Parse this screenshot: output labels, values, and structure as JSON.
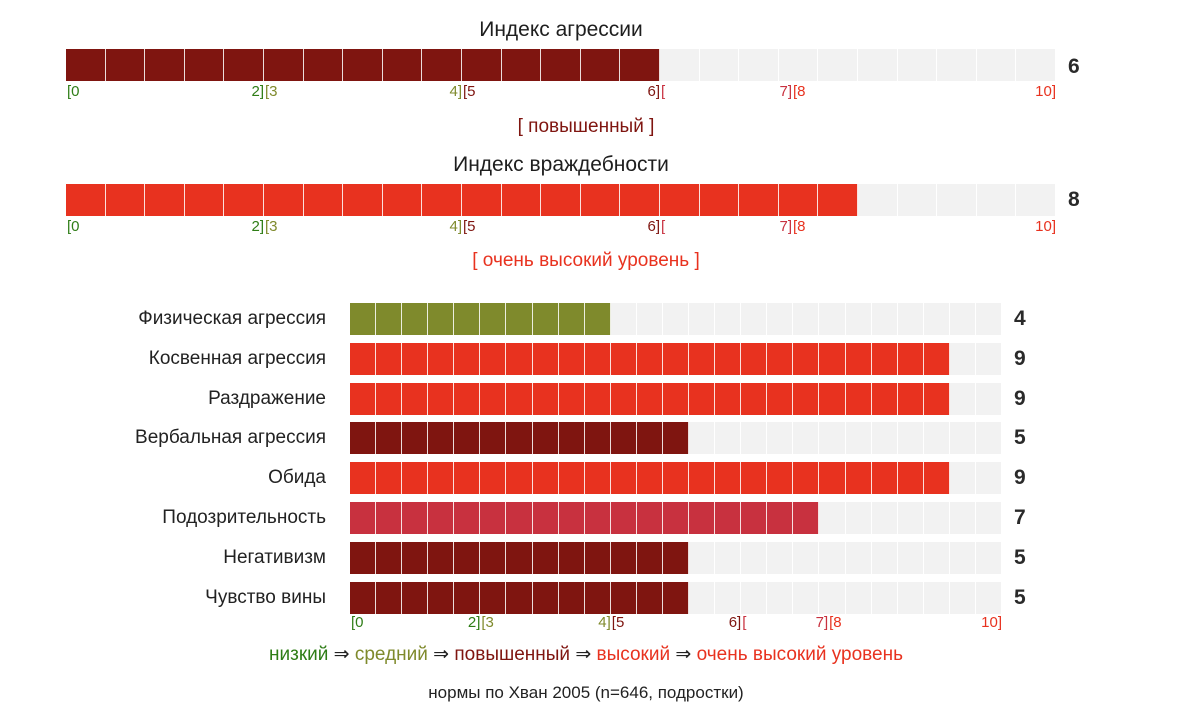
{
  "colors": {
    "low": "#2e7d16",
    "medium": "#7f8a2c",
    "elevated": "#7f1510",
    "high": "#c8313f",
    "very_high": "#e8321f",
    "background": "#f2f2f2"
  },
  "chart_data": [
    {
      "type": "bar",
      "orientation": "horizontal",
      "title": "Индекс агрессии",
      "categories": [
        "Индекс агрессии"
      ],
      "values": [
        6
      ],
      "value_label": "6",
      "xlim": [
        0,
        10
      ],
      "level_text": "[ повышенный ]",
      "level": "elevated"
    },
    {
      "type": "bar",
      "orientation": "horizontal",
      "title": "Индекс враждебности",
      "categories": [
        "Индекс враждебности"
      ],
      "values": [
        8
      ],
      "value_label": "8",
      "xlim": [
        0,
        10
      ],
      "level_text": "[ очень высокий уровень ]",
      "level": "very_high"
    },
    {
      "type": "bar",
      "orientation": "horizontal",
      "xlim": [
        0,
        10
      ],
      "categories": [
        "Физическая агрессия",
        "Косвенная агрессия",
        "Раздражение",
        "Вербальная агрессия",
        "Обида",
        "Подозрительность",
        "Негативизм",
        "Чувство вины"
      ],
      "values": [
        4,
        9,
        9,
        5,
        9,
        7,
        5,
        5
      ],
      "value_labels": [
        "4",
        "9",
        "9",
        "5",
        "9",
        "7",
        "5",
        "5"
      ],
      "levels": [
        "medium",
        "very_high",
        "very_high",
        "elevated",
        "very_high",
        "high",
        "elevated",
        "elevated"
      ]
    }
  ],
  "scale_ticks": [
    {
      "text": "[0",
      "pos": 0,
      "align": "start",
      "level": "low"
    },
    {
      "text": "2]",
      "pos": 3,
      "align": "end",
      "level": "low"
    },
    {
      "text": "[3",
      "pos": 3,
      "align": "start",
      "level": "medium"
    },
    {
      "text": "4]",
      "pos": 6,
      "align": "end",
      "level": "medium"
    },
    {
      "text": "[5",
      "pos": 6,
      "align": "start",
      "level": "elevated"
    },
    {
      "text": "6]",
      "pos": 9,
      "align": "end",
      "level": "elevated"
    },
    {
      "text": "[",
      "pos": 9,
      "align": "start",
      "level": "high"
    },
    {
      "text": "7]",
      "pos": 11,
      "align": "end",
      "level": "high"
    },
    {
      "text": "[8",
      "pos": 11,
      "align": "start",
      "level": "very_high"
    },
    {
      "text": "10]",
      "pos": 15,
      "align": "end",
      "level": "very_high"
    }
  ],
  "legend": [
    {
      "text": "низкий",
      "level": "low"
    },
    {
      "text": " ⇒ ",
      "level": "arrow"
    },
    {
      "text": "средний",
      "level": "medium"
    },
    {
      "text": " ⇒ ",
      "level": "arrow"
    },
    {
      "text": "повышенный",
      "level": "elevated"
    },
    {
      "text": " ⇒ ",
      "level": "arrow"
    },
    {
      "text": "высокий",
      "level": "high_text"
    },
    {
      "text": " ⇒ ",
      "level": "arrow"
    },
    {
      "text": "очень высокий уровень",
      "level": "very_high"
    }
  ],
  "footnote": "нормы по Хван 2005 (n=646, подростки)"
}
